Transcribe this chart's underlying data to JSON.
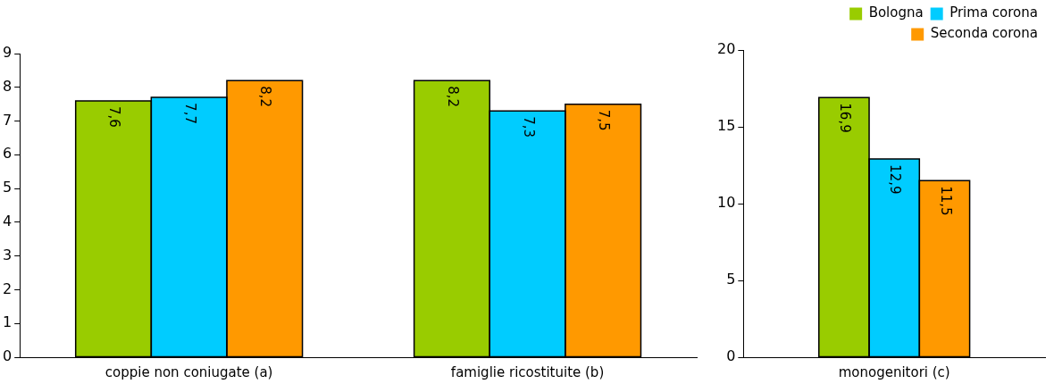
{
  "chart_data": [
    {
      "type": "bar",
      "categories": [
        "coppie non coniugate (a)",
        "famiglie ricostituite (b)"
      ],
      "series": [
        {
          "color": "#99cc00",
          "values": [
            7.6,
            8.2
          ],
          "value_labels": [
            "7,6",
            "8,2"
          ]
        },
        {
          "color": "#00ccff",
          "values": [
            7.7,
            7.3
          ],
          "value_labels": [
            "7,7",
            "7,3"
          ]
        },
        {
          "color": "#ff9900",
          "values": [
            8.2,
            7.5
          ],
          "value_labels": [
            "8,2",
            "7,5"
          ]
        }
      ],
      "ylim": [
        0,
        9
      ],
      "yticks": [
        0,
        1,
        2,
        3,
        4,
        5,
        6,
        7,
        8,
        9
      ],
      "grid": false,
      "legend": false
    },
    {
      "type": "bar",
      "categories": [
        "monogenitori (c)"
      ],
      "series": [
        {
          "name": "Bologna",
          "color": "#99cc00",
          "values": [
            16.9
          ],
          "value_labels": [
            "16,9"
          ]
        },
        {
          "name": "Prima corona",
          "color": "#00ccff",
          "values": [
            12.9
          ],
          "value_labels": [
            "12,9"
          ]
        },
        {
          "name": "Seconda corona",
          "color": "#ff9900",
          "values": [
            11.5
          ],
          "value_labels": [
            "11,5"
          ]
        }
      ],
      "ylim": [
        0,
        20
      ],
      "yticks": [
        0,
        5,
        10,
        15,
        20
      ],
      "grid": false,
      "legend": "top right"
    }
  ]
}
